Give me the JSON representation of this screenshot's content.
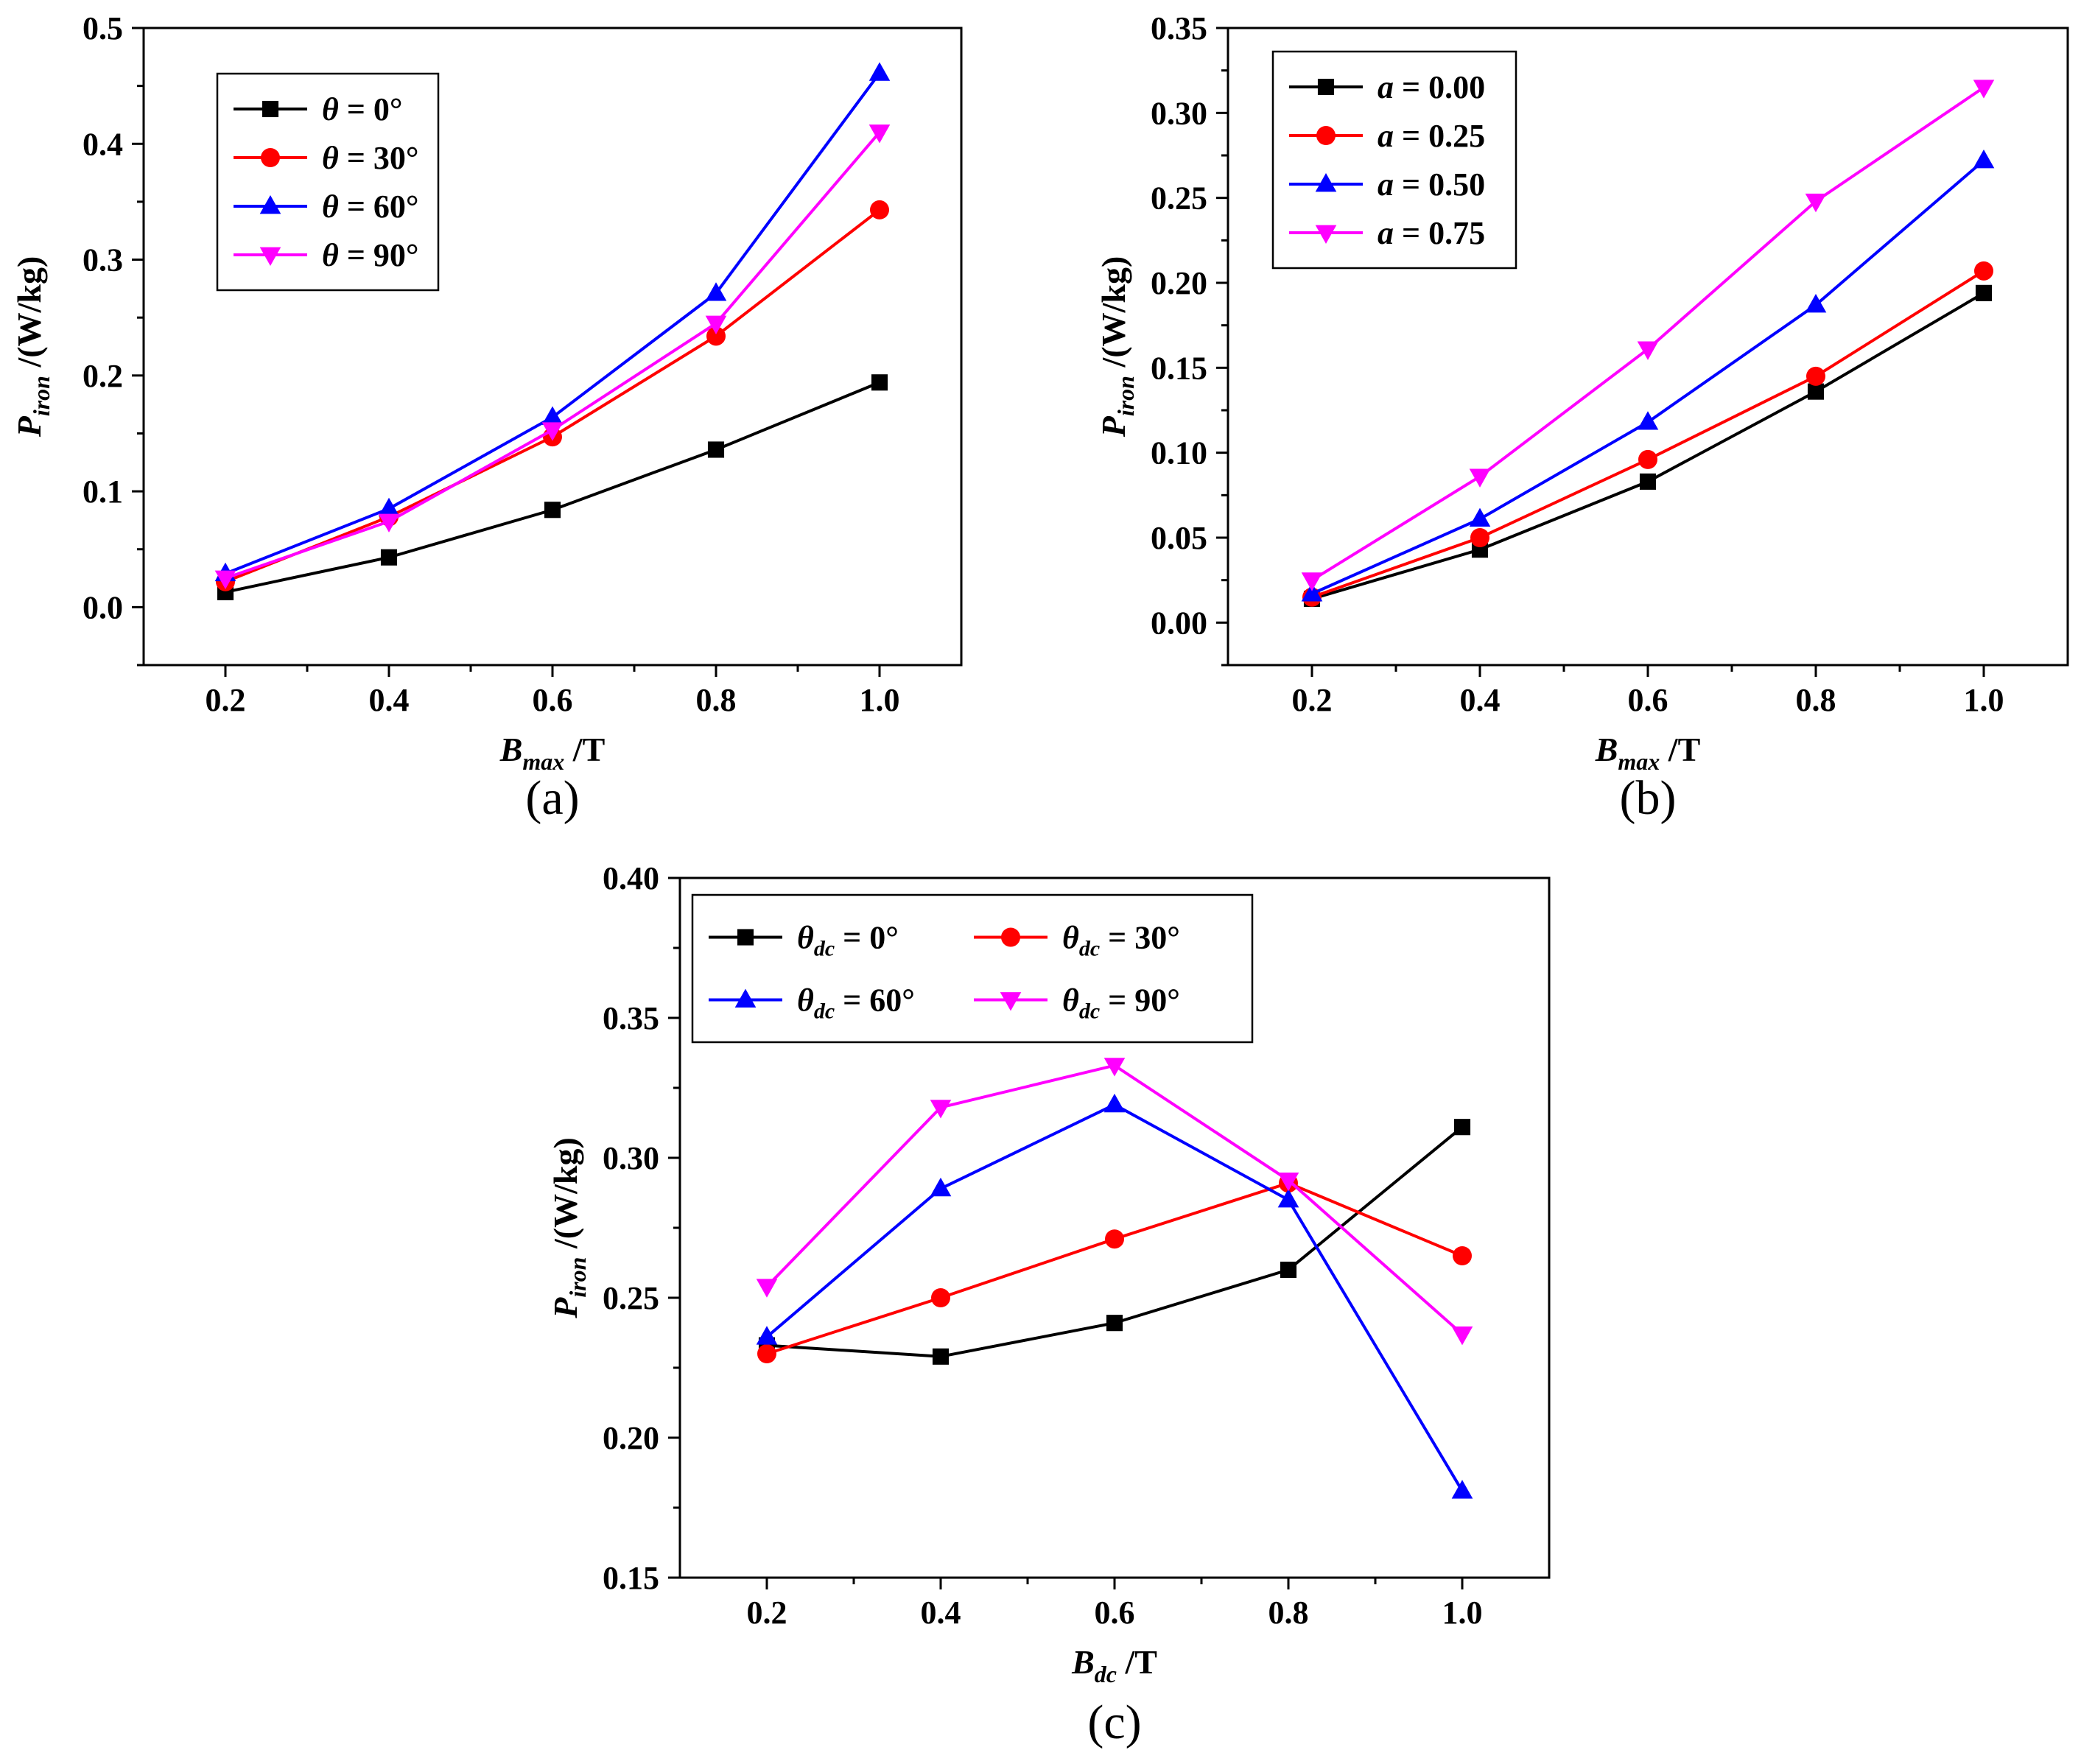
{
  "chart_data": [
    {
      "type": "line",
      "panel_label": "(a)",
      "xlabel": {
        "symbol": "B",
        "subscript": "max",
        "unit": "/T"
      },
      "ylabel": {
        "symbol": "P",
        "subscript": "iron",
        "unit": "/(W/kg)"
      },
      "xlim": [
        0.1,
        1.1
      ],
      "ylim": [
        -0.05,
        0.5
      ],
      "xticks": [
        "0.2",
        "0.4",
        "0.6",
        "0.8",
        "1.0"
      ],
      "yticks": [
        "0.0",
        "0.1",
        "0.2",
        "0.3",
        "0.4",
        "0.5"
      ],
      "x": [
        0.2,
        0.4,
        0.6,
        0.8,
        1.0
      ],
      "legend_position": "top-left",
      "series": [
        {
          "name": "θ = 0°",
          "sym": "θ",
          "sub": "",
          "eq": "= 0°",
          "color": "#000000",
          "marker": "square",
          "values": [
            0.013,
            0.043,
            0.084,
            0.136,
            0.194
          ]
        },
        {
          "name": "θ = 30°",
          "sym": "θ",
          "sub": "",
          "eq": "= 30°",
          "color": "#ff0000",
          "marker": "circle",
          "values": [
            0.022,
            0.078,
            0.147,
            0.234,
            0.343
          ]
        },
        {
          "name": "θ = 60°",
          "sym": "θ",
          "sub": "",
          "eq": "= 60°",
          "color": "#0000ff",
          "marker": "triangle-up",
          "values": [
            0.029,
            0.085,
            0.164,
            0.271,
            0.461
          ]
        },
        {
          "name": "θ = 90°",
          "sym": "θ",
          "sub": "",
          "eq": "= 90°",
          "color": "#ff00ff",
          "marker": "triangle-down",
          "values": [
            0.025,
            0.074,
            0.153,
            0.245,
            0.41
          ]
        }
      ]
    },
    {
      "type": "line",
      "panel_label": "(b)",
      "xlabel": {
        "symbol": "B",
        "subscript": "max",
        "unit": "/T"
      },
      "ylabel": {
        "symbol": "P",
        "subscript": "iron",
        "unit": "/(W/kg)"
      },
      "xlim": [
        0.1,
        1.1
      ],
      "ylim": [
        -0.025,
        0.35
      ],
      "xticks": [
        "0.2",
        "0.4",
        "0.6",
        "0.8",
        "1.0"
      ],
      "yticks": [
        "0.00",
        "0.05",
        "0.10",
        "0.15",
        "0.20",
        "0.25",
        "0.30",
        "0.35"
      ],
      "x": [
        0.2,
        0.4,
        0.6,
        0.8,
        1.0
      ],
      "legend_position": "top-left",
      "series": [
        {
          "name": "a = 0.00",
          "sym": "a",
          "sub": "",
          "eq": "= 0.00",
          "color": "#000000",
          "marker": "square",
          "values": [
            0.014,
            0.043,
            0.083,
            0.136,
            0.194
          ]
        },
        {
          "name": "a = 0.25",
          "sym": "a",
          "sub": "",
          "eq": "= 0.25",
          "color": "#ff0000",
          "marker": "circle",
          "values": [
            0.015,
            0.05,
            0.096,
            0.145,
            0.207
          ]
        },
        {
          "name": "a = 0.50",
          "sym": "a",
          "sub": "",
          "eq": "= 0.50",
          "color": "#0000ff",
          "marker": "triangle-up",
          "values": [
            0.017,
            0.061,
            0.118,
            0.187,
            0.272
          ]
        },
        {
          "name": "a = 0.75",
          "sym": "a",
          "sub": "",
          "eq": "= 0.75",
          "color": "#ff00ff",
          "marker": "triangle-down",
          "values": [
            0.025,
            0.086,
            0.161,
            0.248,
            0.315
          ]
        }
      ]
    },
    {
      "type": "line",
      "panel_label": "(c)",
      "xlabel": {
        "symbol": "B",
        "subscript": "dc",
        "unit": "/T"
      },
      "ylabel": {
        "symbol": "P",
        "subscript": "iron",
        "unit": "/(W/kg)"
      },
      "xlim": [
        0.1,
        1.1
      ],
      "ylim": [
        0.15,
        0.4
      ],
      "xticks": [
        "0.2",
        "0.4",
        "0.6",
        "0.8",
        "1.0"
      ],
      "yticks": [
        "0.15",
        "0.20",
        "0.25",
        "0.30",
        "0.35",
        "0.40"
      ],
      "x": [
        0.2,
        0.4,
        0.6,
        0.8,
        1.0
      ],
      "legend_position": "top-left",
      "series": [
        {
          "name": "θdc = 0°",
          "sym": "θ",
          "sub": "dc",
          "eq": "= 0°",
          "color": "#000000",
          "marker": "square",
          "values": [
            0.233,
            0.229,
            0.241,
            0.26,
            0.311
          ]
        },
        {
          "name": "θdc = 30°",
          "sym": "θ",
          "sub": "dc",
          "eq": "= 30°",
          "color": "#ff0000",
          "marker": "circle",
          "values": [
            0.23,
            0.25,
            0.271,
            0.291,
            0.265
          ]
        },
        {
          "name": "θdc = 60°",
          "sym": "θ",
          "sub": "dc",
          "eq": "= 60°",
          "color": "#0000ff",
          "marker": "triangle-up",
          "values": [
            0.236,
            0.289,
            0.319,
            0.285,
            0.181
          ]
        },
        {
          "name": "θdc = 90°",
          "sym": "θ",
          "sub": "dc",
          "eq": "= 90°",
          "color": "#ff00ff",
          "marker": "triangle-down",
          "values": [
            0.254,
            0.318,
            0.333,
            0.292,
            0.237
          ]
        }
      ]
    }
  ]
}
